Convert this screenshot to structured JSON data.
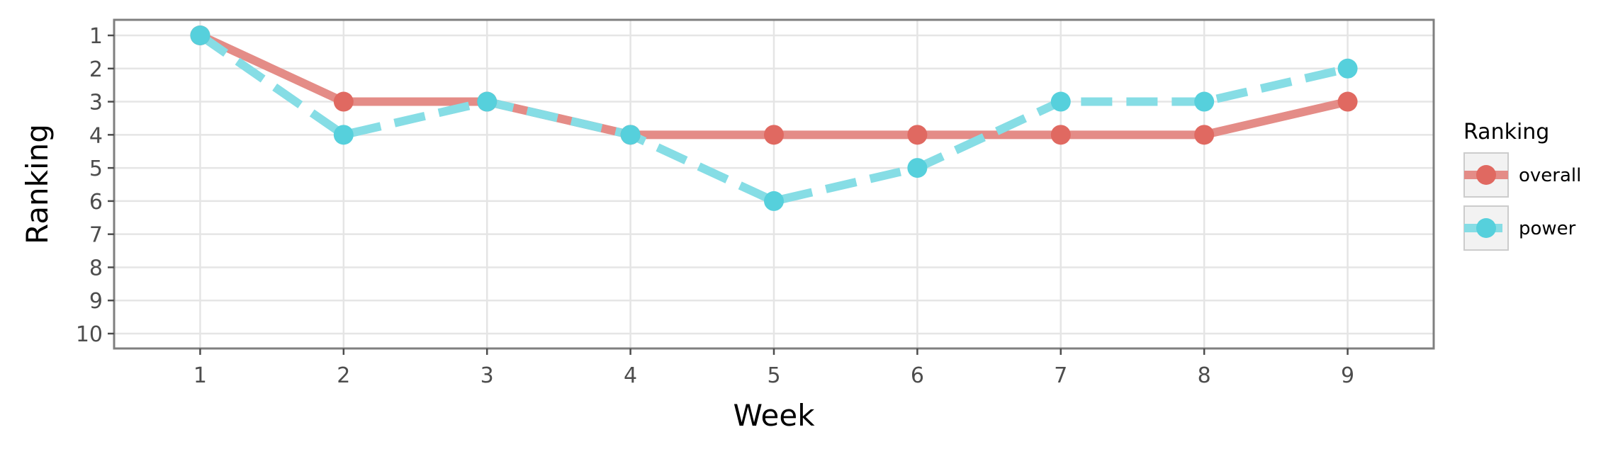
{
  "chart_data": {
    "type": "line",
    "xlabel": "Week",
    "ylabel": "Ranking",
    "x": [
      1,
      2,
      3,
      4,
      5,
      6,
      7,
      8,
      9
    ],
    "x_ticks": [
      "1",
      "2",
      "3",
      "4",
      "5",
      "6",
      "7",
      "8",
      "9"
    ],
    "xlim": [
      0.4,
      9.6
    ],
    "y_ticks": [
      "1",
      "2",
      "3",
      "4",
      "5",
      "6",
      "7",
      "8",
      "9",
      "10"
    ],
    "ylim": [
      1,
      10
    ],
    "y_reversed": true,
    "grid": true,
    "legend": {
      "title": "Ranking",
      "placement": "right"
    },
    "series": [
      {
        "name": "overall",
        "values": [
          1,
          3,
          3,
          4,
          4,
          4,
          4,
          4,
          3
        ],
        "color": "#e06961",
        "line_color": "#e48c87",
        "line_style": "solid"
      },
      {
        "name": "power",
        "values": [
          1,
          4,
          3,
          4,
          6,
          5,
          3,
          3,
          2
        ],
        "color": "#56d0dc",
        "line_color": "#86dde5",
        "line_style": "dashed"
      }
    ]
  }
}
